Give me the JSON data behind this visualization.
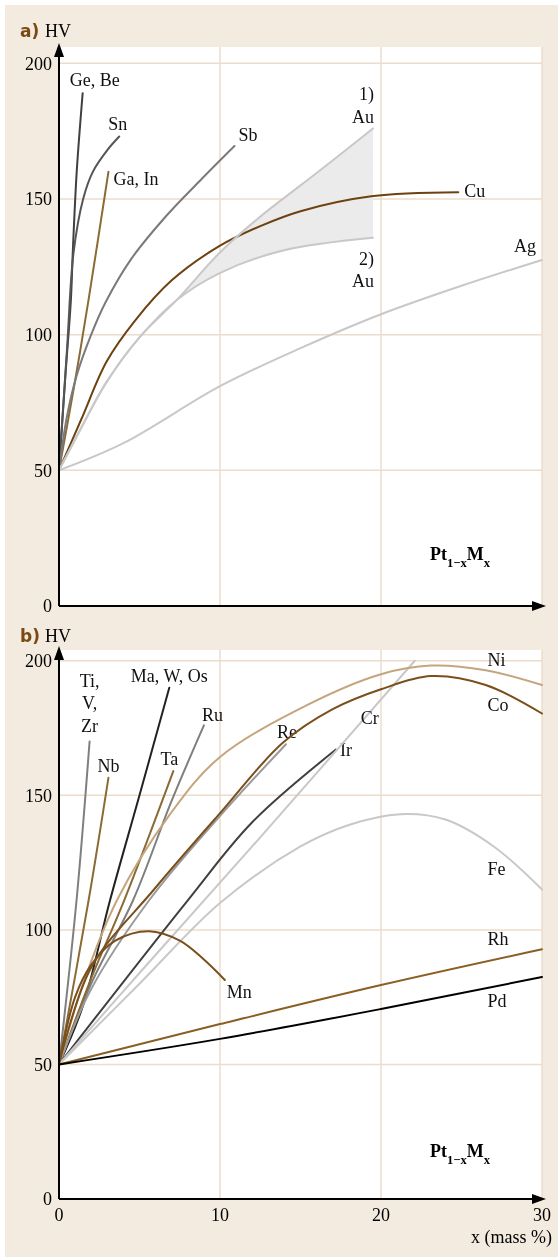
{
  "chart_data": [
    {
      "type": "line",
      "title": "a)",
      "ylabel": "HV",
      "xlim": [
        0,
        30
      ],
      "xticks": [
        0,
        10,
        20,
        30
      ],
      "ylim": [
        0,
        206
      ],
      "yticks": [
        0,
        50,
        100,
        150,
        200
      ],
      "grid": true,
      "tick_labels": "y",
      "annotations": [
        "Pt$_{1−x}$M$_{x}$"
      ],
      "series": [
        {
          "name": "Ge, Be",
          "color": "#404040",
          "x": [
            0,
            0.4,
            0.74,
            0.86,
            1.1,
            1.47
          ],
          "values": [
            50,
            85,
            113,
            131,
            160,
            189
          ]
        },
        {
          "name": "Sn",
          "color": "#555555",
          "x": [
            0,
            0.5,
            0.9,
            1.5,
            2.1,
            3,
            3.74
          ],
          "values": [
            50,
            95,
            130,
            150,
            160,
            168,
            173
          ]
        },
        {
          "name": "Ga, In",
          "color": "#8c6a35",
          "x": [
            0,
            1,
            1.84,
            3.07
          ],
          "values": [
            50,
            83,
            113,
            160
          ]
        },
        {
          "name": "Sb",
          "color": "#7a7a7a",
          "x": [
            0,
            0.5,
            1.1,
            2,
            2.9,
            4.5,
            6.7,
            8.8,
            10.9
          ],
          "values": [
            50,
            70,
            85,
            100,
            112,
            128,
            144,
            157,
            169.5
          ]
        },
        {
          "name": "Cu",
          "color": "#6b4210",
          "x": [
            0,
            1.4,
            2.95,
            4.7,
            7,
            9.95,
            12.5,
            15,
            19.4,
            24.8
          ],
          "values": [
            50,
            69,
            90,
            105,
            120,
            132.6,
            140,
            145.5,
            151,
            152.5
          ]
        },
        {
          "name": "1)\nAu",
          "color": "#c8c8c8",
          "x": [
            0,
            1.5,
            2.95,
            5,
            7.3,
            9.95,
            12.4,
            16.1,
            19.5
          ],
          "values": [
            50,
            67,
            82.5,
            99,
            112.7,
            130,
            143,
            160,
            176
          ],
          "lower": [
            50,
            67,
            82.5,
            99,
            112.7,
            122.6,
            128,
            133.5,
            135.7
          ],
          "upper": [
            50,
            67,
            82.5,
            99,
            112.7,
            130,
            143,
            160,
            176
          ]
        },
        {
          "name": "2)\nAu",
          "color": "#c8c8c8",
          "x": [
            0,
            1.5,
            2.95,
            5,
            7.3,
            9.95,
            13.9,
            19.5
          ],
          "values": [
            50,
            67,
            82.5,
            99,
            112.7,
            122.6,
            131,
            135.7
          ]
        },
        {
          "name": "Ag",
          "color": "#c8c8c8",
          "x": [
            0,
            4,
            10,
            15,
            20,
            25,
            30
          ],
          "values": [
            50,
            60,
            81,
            95,
            107.5,
            118,
            127.5
          ]
        }
      ]
    },
    {
      "type": "line",
      "title": "b)",
      "ylabel": "HV",
      "xlabel": "x (mass %)",
      "xlim": [
        0,
        30
      ],
      "xticks": [
        0,
        10,
        20,
        30
      ],
      "ylim": [
        0,
        204
      ],
      "yticks": [
        0,
        50,
        100,
        150,
        200
      ],
      "grid": true,
      "annotations": [
        "Pt$_{1−x}$M$_{x}$"
      ],
      "series": [
        {
          "name": "Ti,\nV,\nZr",
          "color": "#7f7f7f",
          "x": [
            0,
            1.09,
            1.9
          ],
          "values": [
            50,
            111,
            170
          ]
        },
        {
          "name": "Nb",
          "color": "#8c6a35",
          "x": [
            0,
            1.84,
            3.07
          ],
          "values": [
            50,
            111,
            156.5
          ]
        },
        {
          "name": "Ma, W, Os",
          "color": "#222222",
          "x": [
            0,
            1.5,
            3.17,
            5,
            6.85
          ],
          "values": [
            50,
            72,
            111,
            150,
            190
          ]
        },
        {
          "name": "Ru",
          "color": "#7f7f7f",
          "x": [
            0,
            2,
            4.6,
            7,
            9
          ],
          "values": [
            50,
            80,
            111,
            148,
            176
          ]
        },
        {
          "name": "Ta",
          "color": "#8c6a35",
          "x": [
            0,
            2,
            4.05,
            7.1
          ],
          "values": [
            50,
            82,
            111,
            159
          ]
        },
        {
          "name": "Re",
          "color": "#9a9a9a",
          "x": [
            0,
            2,
            5.6,
            9.95,
            14.1
          ],
          "values": [
            50,
            78,
            111,
            142,
            169
          ]
        },
        {
          "name": "Ir",
          "color": "#404040",
          "x": [
            0,
            8,
            12,
            17.2
          ],
          "values": [
            50,
            111,
            140,
            167
          ]
        },
        {
          "name": "Cr",
          "color": "#c8c8c8",
          "x": [
            0,
            5.15,
            12,
            22.1
          ],
          "values": [
            50,
            85,
            131,
            200
          ]
        },
        {
          "name": "Ni",
          "color": "#c4a57e",
          "x": [
            0,
            1.5,
            3.6,
            6.9,
            9.95,
            15.4,
            20,
            23.1,
            26.5,
            30
          ],
          "values": [
            50,
            80,
            111,
            143,
            164,
            183.5,
            195,
            198.2,
            196.5,
            191
          ]
        },
        {
          "name": "Co",
          "color": "#7a4f1c",
          "x": [
            0,
            2,
            5.9,
            9.95,
            13.9,
            17,
            20,
            23.1,
            26.5,
            30
          ],
          "values": [
            50,
            86,
            115,
            143,
            169.5,
            182,
            189.4,
            194.3,
            191,
            180.4
          ]
        },
        {
          "name": "Fe",
          "color": "#c8c8c8",
          "x": [
            0,
            5,
            10,
            15,
            18,
            21.2,
            24,
            27,
            30
          ],
          "values": [
            50,
            80,
            110,
            131,
            139,
            143,
            141,
            131,
            115
          ]
        },
        {
          "name": "Mn",
          "color": "#7a4f1c",
          "x": [
            0,
            1,
            2,
            3.5,
            5.6,
            7.5,
            9,
            10.3
          ],
          "values": [
            50,
            75,
            87,
            96,
            99.5,
            96,
            89,
            81.4
          ]
        },
        {
          "name": "Rh",
          "color": "#8b5e24",
          "x": [
            0,
            10,
            20,
            30
          ],
          "values": [
            50,
            65,
            79.5,
            92.8
          ]
        },
        {
          "name": "Pd",
          "color": "#000000",
          "x": [
            0,
            10,
            20,
            30
          ],
          "values": [
            50,
            59.5,
            70.6,
            82.5
          ]
        }
      ]
    }
  ]
}
